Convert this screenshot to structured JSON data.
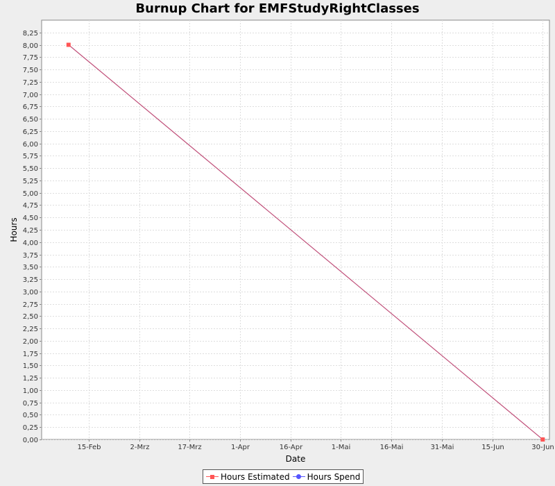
{
  "chart_data": {
    "type": "line",
    "title": "Burnup Chart for EMFStudyRightClasses",
    "xlabel": "Date",
    "ylabel": "Hours",
    "x_ticks": [
      {
        "label": "15-Feb",
        "date": "2014-02-15"
      },
      {
        "label": "2-Mrz",
        "date": "2014-03-02"
      },
      {
        "label": "17-Mrz",
        "date": "2014-03-17"
      },
      {
        "label": "1-Apr",
        "date": "2014-04-01"
      },
      {
        "label": "16-Apr",
        "date": "2014-04-16"
      },
      {
        "label": "1-Mai",
        "date": "2014-05-01"
      },
      {
        "label": "16-Mai",
        "date": "2014-05-16"
      },
      {
        "label": "31-Mai",
        "date": "2014-05-31"
      },
      {
        "label": "15-Jun",
        "date": "2014-06-15"
      },
      {
        "label": "30-Jun",
        "date": "2014-06-30"
      }
    ],
    "xlim": [
      "2014-02-01",
      "2014-07-02"
    ],
    "ylim": [
      0,
      8.5
    ],
    "y_ticks": [
      0,
      0.25,
      0.5,
      0.75,
      1,
      1.25,
      1.5,
      1.75,
      2,
      2.25,
      2.5,
      2.75,
      3,
      3.25,
      3.5,
      3.75,
      4,
      4.25,
      4.5,
      4.75,
      5,
      5.25,
      5.5,
      5.75,
      6,
      6.25,
      6.5,
      6.75,
      7,
      7.25,
      7.5,
      7.75,
      8,
      8.25
    ],
    "grid": true,
    "legend_position": "bottom-center",
    "series": [
      {
        "name": "Hours Estimated",
        "color": "#ff5555",
        "line_color": "#c0507a",
        "marker": "square",
        "points": [
          {
            "x": "2014-02-09",
            "y": 8.0
          },
          {
            "x": "2014-06-30",
            "y": 0.0
          }
        ]
      },
      {
        "name": "Hours Spend",
        "color": "#5555ff",
        "marker": "circle",
        "points": []
      }
    ]
  }
}
